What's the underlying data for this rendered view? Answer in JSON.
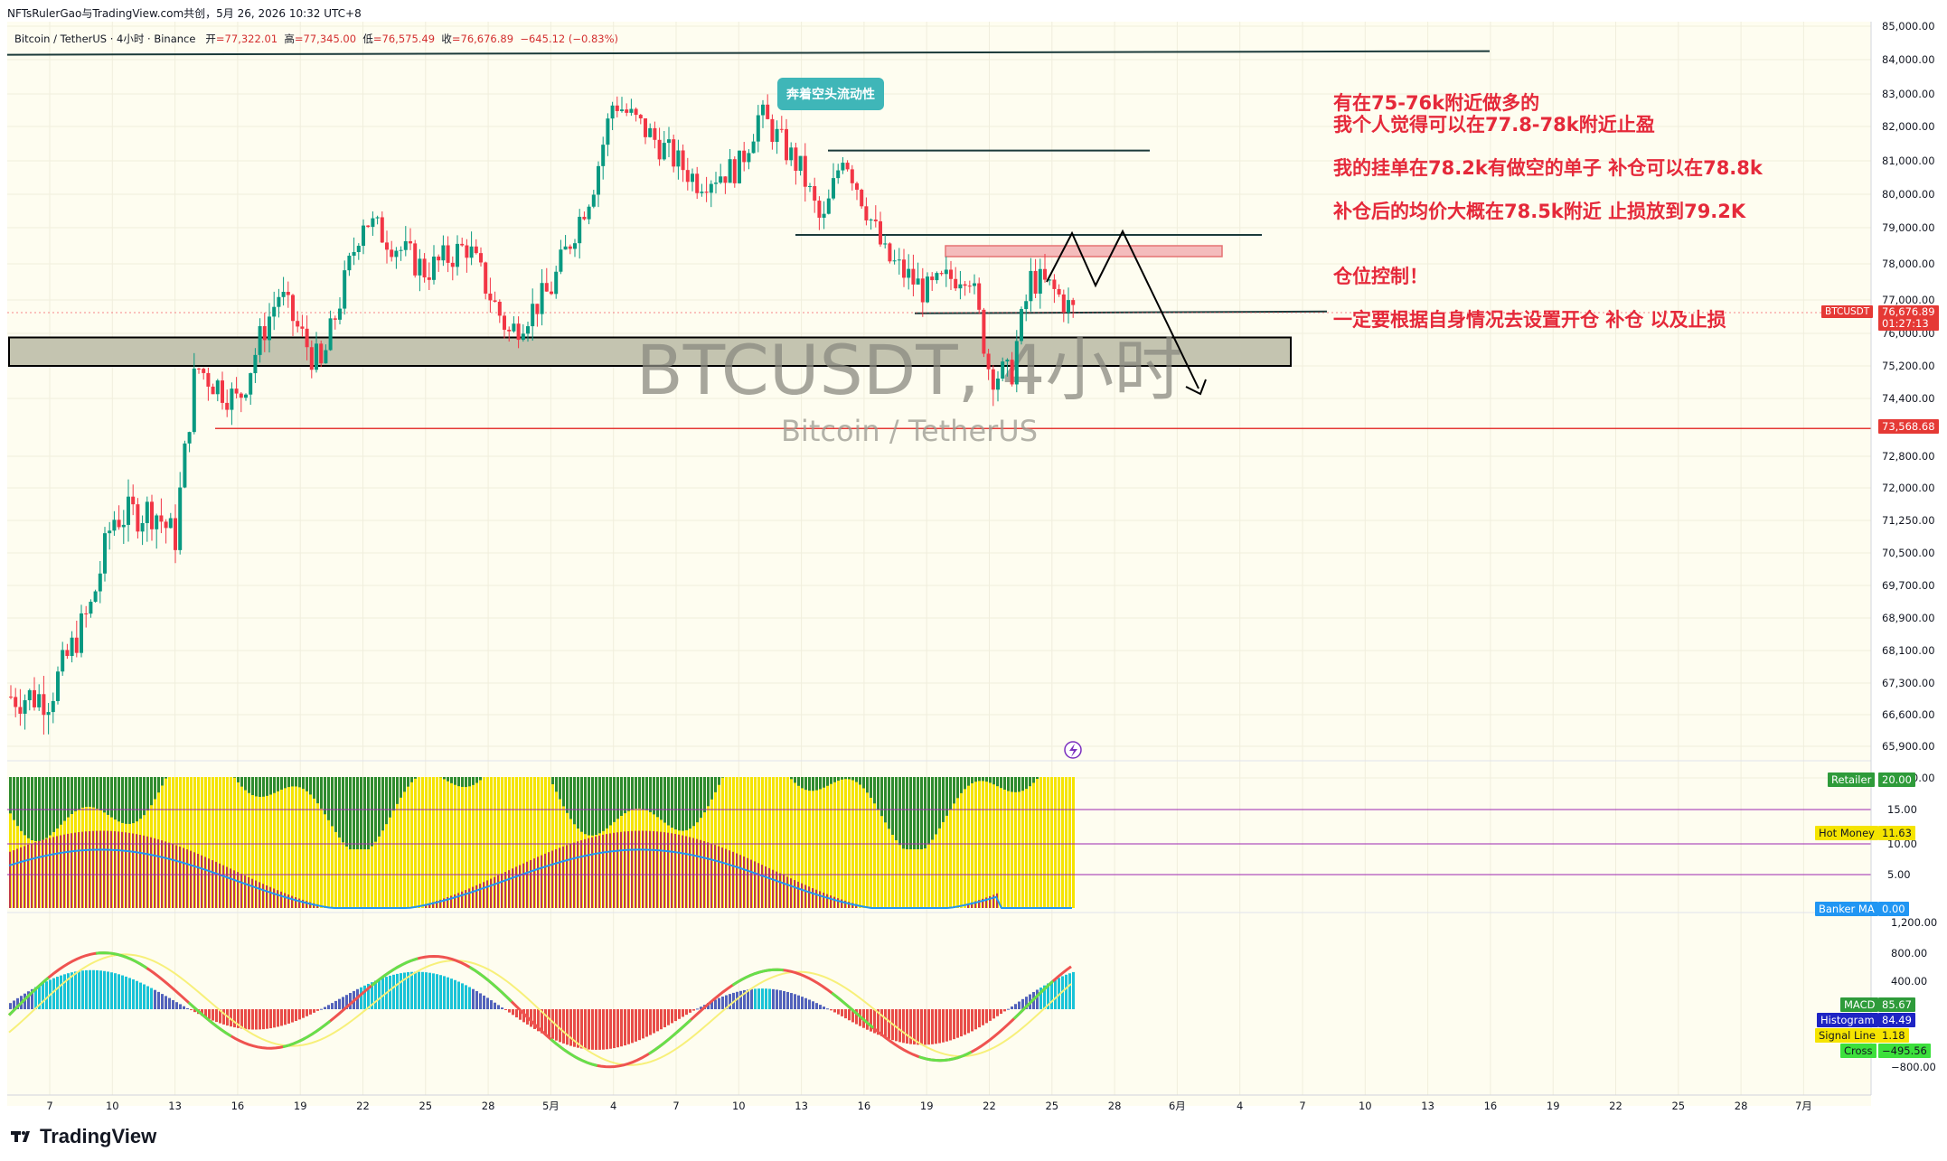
{
  "header": {
    "publisher": "NFTsRulerGao与TradingView.com共创，5月 26, 2026 10:32 UTC+8"
  },
  "symbol": {
    "name": "Bitcoin / TetherUS · 4小时 · Binance",
    "open_label": "开",
    "open": "=77,322.01",
    "high_label": "高",
    "high": "=77,345.00",
    "low_label": "低",
    "low": "=76,575.49",
    "close_label": "收",
    "close": "=76,676.89",
    "change": "−645.12 (−0.83%)"
  },
  "watermark": {
    "ticker": "BTCUSDT, 4小时",
    "pair": "Bitcoin / TetherUS"
  },
  "callout": {
    "text": "奔着空头流动性"
  },
  "notes": [
    "有在75-76k附近做多的",
    "我个人觉得可以在77.8-78k附近止盈",
    "我的挂单在78.2k有做空的单子 补仓可以在78.8k",
    "补仓后的均价大概在78.5k附近 止损放到79.2K",
    "仓位控制！",
    "一定要根据自身情况去设置开仓 补仓 以及止损"
  ],
  "price_tags": {
    "symbol_tag": "BTCUSDT",
    "last_price": "76,676.89",
    "countdown": "01:27:13",
    "level_price": "73,568.68"
  },
  "indicator1": {
    "retailer_label": "Retailer",
    "retailer_value": "20.00",
    "hotmoney_label": "Hot Money",
    "hotmoney_value": "11.63",
    "banker_label": "Banker MA",
    "banker_value": "0.00",
    "levels": [
      "15.00",
      "10.00",
      "5.00"
    ]
  },
  "indicator2": {
    "macd_label": "MACD",
    "macd_value": "85.67",
    "hist_label": "Histogram",
    "hist_value": "84.49",
    "signal_label": "Signal Line",
    "signal_value": "1.18",
    "cross_label": "Cross",
    "cross_value": "−495.56",
    "axis": [
      "1,200.00",
      "800.00",
      "400.00",
      "−800.00"
    ]
  },
  "brand": {
    "logo_text": "TradingView"
  },
  "colors": {
    "up": "#089981",
    "down": "#f23645",
    "bg": "#fefdf0",
    "note": "#e5293a",
    "level": "#e53935",
    "zone": "#c4c4b0"
  },
  "chart_data": [
    {
      "type": "candlestick",
      "title": "BTCUSDT, 4小时",
      "subtitle": "Bitcoin / TetherUS",
      "x_ticks": [
        "7",
        "10",
        "13",
        "16",
        "19",
        "22",
        "25",
        "28",
        "5月",
        "4",
        "7",
        "10",
        "13",
        "16",
        "19",
        "22",
        "25",
        "28",
        "6月",
        "4",
        "7",
        "10",
        "13",
        "16",
        "19",
        "22",
        "25",
        "28",
        "7月"
      ],
      "y_ticks": [
        "85,000.00",
        "84,000.00",
        "83,000.00",
        "82,000.00",
        "81,000.00",
        "80,000.00",
        "79,000.00",
        "78,000.00",
        "77,000.00",
        "76,000.00",
        "75,200.00",
        "74,400.00",
        "72,800.00",
        "72,000.00",
        "71,250.00",
        "70,500.00",
        "69,700.00",
        "68,900.00",
        "68,100.00",
        "67,300.00",
        "66,600.00",
        "65,900.00",
        "65,220.00"
      ],
      "ylim": [
        65220,
        85000
      ],
      "approx_close_path": [
        {
          "x": "7",
          "y": 67000
        },
        {
          "x": "9",
          "y": 69200
        },
        {
          "x": "10",
          "y": 71300
        },
        {
          "x": "12",
          "y": 71500
        },
        {
          "x": "13",
          "y": 70800
        },
        {
          "x": "14",
          "y": 75200
        },
        {
          "x": "16",
          "y": 74300
        },
        {
          "x": "18",
          "y": 77200
        },
        {
          "x": "19",
          "y": 76000
        },
        {
          "x": "20",
          "y": 75100
        },
        {
          "x": "22",
          "y": 79300
        },
        {
          "x": "25",
          "y": 77800
        },
        {
          "x": "27",
          "y": 78500
        },
        {
          "x": "29",
          "y": 76000
        },
        {
          "x": "5月",
          "y": 77300
        },
        {
          "x": "3",
          "y": 80200
        },
        {
          "x": "6",
          "y": 82800
        },
        {
          "x": "8",
          "y": 80400
        },
        {
          "x": "10",
          "y": 80800
        },
        {
          "x": "11",
          "y": 82400
        },
        {
          "x": "13",
          "y": 80700
        },
        {
          "x": "14",
          "y": 79000
        },
        {
          "x": "15",
          "y": 81300
        },
        {
          "x": "17",
          "y": 78200
        },
        {
          "x": "19",
          "y": 77200
        },
        {
          "x": "21",
          "y": 77900
        },
        {
          "x": "22",
          "y": 75100
        },
        {
          "x": "23",
          "y": 74900
        },
        {
          "x": "24",
          "y": 77600
        },
        {
          "x": "25",
          "y": 77300
        },
        {
          "x": "26",
          "y": 76677
        }
      ],
      "last_close": 76676.89,
      "horizontal_levels": [
        84200,
        81300,
        78800,
        76600,
        73568.68
      ],
      "zones": [
        {
          "from": 75200,
          "to": 75900
        },
        {
          "from": 78200,
          "to": 78500
        }
      ]
    }
  ]
}
